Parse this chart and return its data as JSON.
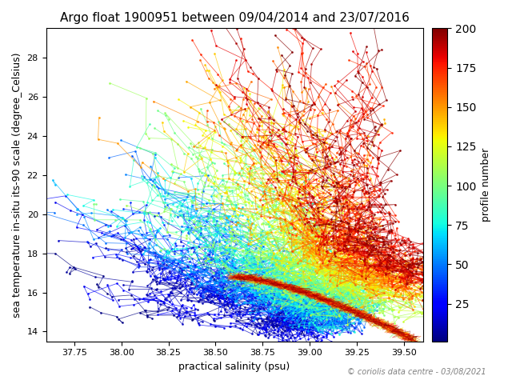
{
  "title": "Argo float 1900951 between 09/04/2014 and 23/07/2016",
  "xlabel": "practical salinity (psu)",
  "ylabel": "sea temperature in-situ its-90 scale (degree_Celsius)",
  "colorbar_label": "profile number",
  "colorbar_ticks": [
    25,
    50,
    75,
    100,
    125,
    150,
    175,
    200
  ],
  "xlim": [
    37.6,
    39.6
  ],
  "ylim": [
    13.5,
    29.5
  ],
  "xticks": [
    37.75,
    38.0,
    38.25,
    38.5,
    38.75,
    39.0,
    39.25,
    39.5
  ],
  "yticks": [
    14,
    16,
    18,
    20,
    22,
    24,
    26,
    28
  ],
  "n_profiles": 200,
  "copyright_text": "© coriolis data centre - 03/08/2021",
  "cmap": "jet",
  "vmin": 1,
  "vmax": 200
}
